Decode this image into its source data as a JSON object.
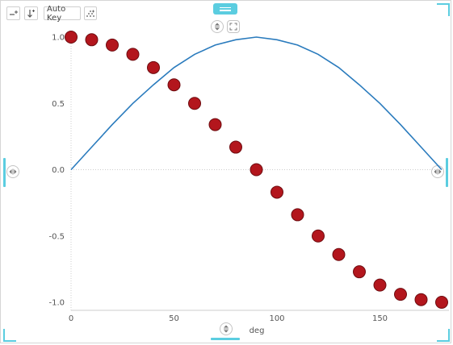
{
  "toolbar": {
    "auto_key_label": "Auto Key",
    "icons": [
      "insert-line-icon",
      "sort-down-icon",
      "scatter-points-icon"
    ]
  },
  "controls": {
    "icons": [
      "expand-vertical-icon",
      "fullscreen-icon",
      "resize-horizontal-icon",
      "drag-handle-icon"
    ]
  },
  "colors": {
    "line": "#2a7bbd",
    "points_fill": "#b3161d",
    "points_stroke": "#6e0c10",
    "accent": "#5bcde0",
    "axis": "#cccccc",
    "tick_label": "#555555"
  },
  "chart_data": {
    "type": "line",
    "title": "",
    "xlabel": "deg",
    "ylabel": "",
    "xlim": [
      0,
      180
    ],
    "ylim": [
      -1.0,
      1.0
    ],
    "xticks": [
      0,
      50,
      100,
      150
    ],
    "yticks": [
      1.0,
      0.5,
      0.0,
      -0.5,
      -1.0
    ],
    "xtick_labels": [
      "0",
      "50",
      "100",
      "150"
    ],
    "ytick_labels": [
      "1.0",
      "0.5",
      "0.0",
      "-0.5",
      "-1.0"
    ],
    "grid": false,
    "zero_line": "dotted",
    "series": [
      {
        "type": "line",
        "x": [
          0,
          10,
          20,
          30,
          40,
          50,
          60,
          70,
          80,
          90,
          100,
          110,
          120,
          130,
          140,
          150,
          160,
          170,
          180
        ],
        "values": [
          0.0,
          0.17,
          0.34,
          0.5,
          0.64,
          0.77,
          0.87,
          0.94,
          0.98,
          1.0,
          0.98,
          0.94,
          0.87,
          0.77,
          0.64,
          0.5,
          0.34,
          0.17,
          0.0
        ]
      },
      {
        "type": "scatter",
        "x": [
          0,
          10,
          20,
          30,
          40,
          50,
          60,
          70,
          80,
          90,
          100,
          110,
          120,
          130,
          140,
          150,
          160,
          170,
          180
        ],
        "values": [
          1.0,
          0.98,
          0.94,
          0.87,
          0.77,
          0.64,
          0.5,
          0.34,
          0.17,
          0.0,
          -0.17,
          -0.34,
          -0.5,
          -0.64,
          -0.77,
          -0.87,
          -0.94,
          -0.98,
          -1.0
        ]
      }
    ]
  }
}
